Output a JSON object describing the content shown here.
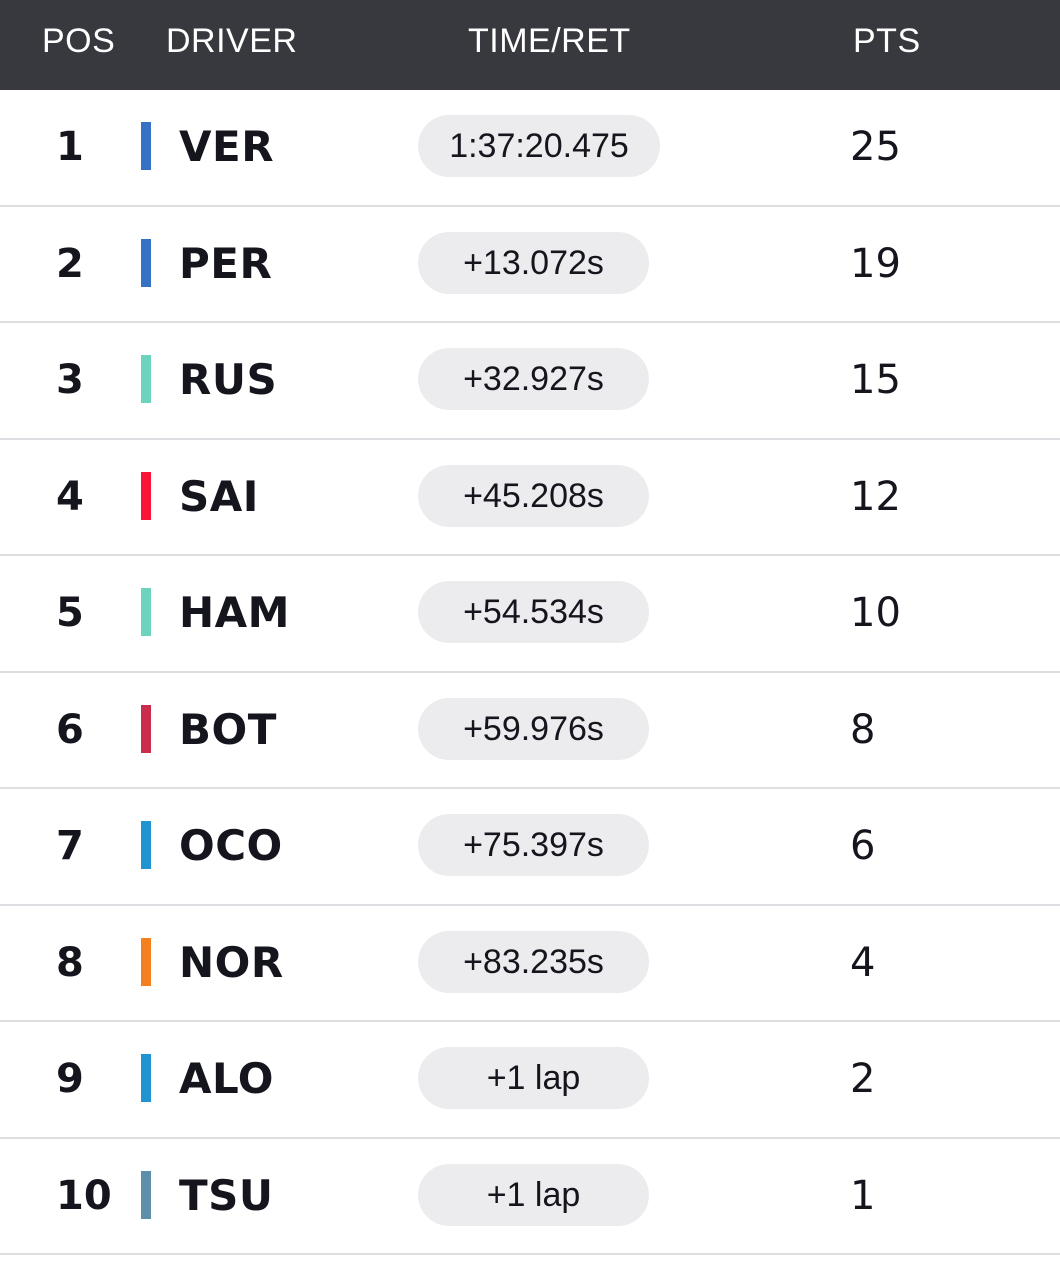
{
  "header": {
    "pos": "POS",
    "driver": "DRIVER",
    "time": "TIME/RET",
    "pts": "PTS"
  },
  "rows": [
    {
      "pos": "1",
      "driver": "VER",
      "time": "1:37:20.475",
      "pts": "25",
      "team_color": "#3671c6"
    },
    {
      "pos": "2",
      "driver": "PER",
      "time": "+13.072s",
      "pts": "19",
      "team_color": "#3671c6"
    },
    {
      "pos": "3",
      "driver": "RUS",
      "time": "+32.927s",
      "pts": "15",
      "team_color": "#6cd3bf"
    },
    {
      "pos": "4",
      "driver": "SAI",
      "time": "+45.208s",
      "pts": "12",
      "team_color": "#f91536"
    },
    {
      "pos": "5",
      "driver": "HAM",
      "time": "+54.534s",
      "pts": "10",
      "team_color": "#6cd3bf"
    },
    {
      "pos": "6",
      "driver": "BOT",
      "time": "+59.976s",
      "pts": "8",
      "team_color": "#c92d4b"
    },
    {
      "pos": "7",
      "driver": "OCO",
      "time": "+75.397s",
      "pts": "6",
      "team_color": "#2293d1"
    },
    {
      "pos": "8",
      "driver": "NOR",
      "time": "+83.235s",
      "pts": "4",
      "team_color": "#f58020"
    },
    {
      "pos": "9",
      "driver": "ALO",
      "time": "+1 lap",
      "pts": "2",
      "team_color": "#2293d1"
    },
    {
      "pos": "10",
      "driver": "TSU",
      "time": "+1 lap",
      "pts": "1",
      "team_color": "#5e8faa"
    }
  ]
}
